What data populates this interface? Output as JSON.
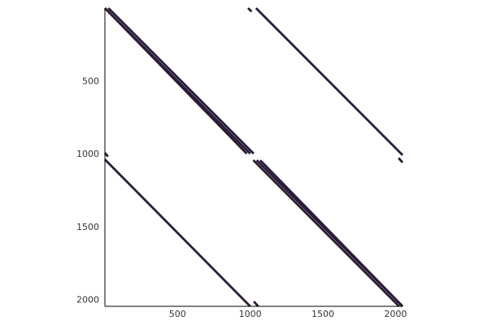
{
  "chart_data": {
    "type": "spy",
    "title": "",
    "xlabel": "",
    "ylabel": "",
    "xlim": [
      1,
      2048
    ],
    "ylim": [
      1,
      2048
    ],
    "y_inverted": true,
    "grid": false,
    "legend": "none",
    "marker_color": "#2b1d38",
    "x_ticks": [
      500,
      1000,
      1500,
      2000
    ],
    "y_ticks": [
      500,
      1000,
      1500,
      2000
    ],
    "x_tick_labels": [
      "500",
      "1000",
      "1500",
      "2000"
    ],
    "y_tick_labels": [
      "500",
      "1000",
      "1500",
      "2000"
    ],
    "nonzero_segments": [
      {
        "row": [
          1,
          1000
        ],
        "col": [
          1,
          1000
        ],
        "offsets": [
          -24,
          0,
          24
        ]
      },
      {
        "row": [
          1045,
          2048
        ],
        "col": [
          1045,
          2048
        ],
        "offsets": [
          -24,
          0,
          24
        ]
      },
      {
        "row": [
          1,
          1010
        ],
        "col": [
          1040,
          2048
        ],
        "offsets": [
          0
        ]
      },
      {
        "row": [
          1,
          25
        ],
        "col": [
          985,
          1010
        ],
        "offsets": [
          0
        ]
      },
      {
        "row": [
          1030,
          1060
        ],
        "col": [
          2020,
          2048
        ],
        "offsets": [
          0
        ]
      },
      {
        "row": [
          1040,
          2048
        ],
        "col": [
          1,
          1000
        ],
        "offsets": [
          0
        ]
      },
      {
        "row": [
          995,
          1020
        ],
        "col": [
          1,
          22
        ],
        "offsets": [
          0
        ]
      },
      {
        "row": [
          2015,
          2048
        ],
        "col": [
          1025,
          1055
        ],
        "offsets": [
          0
        ]
      }
    ]
  }
}
